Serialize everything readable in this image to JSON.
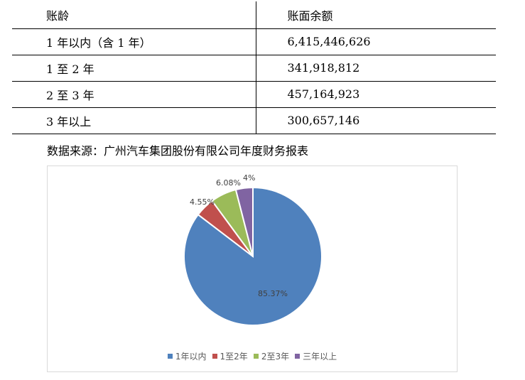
{
  "table": {
    "headers": [
      "账龄",
      "账面余额"
    ],
    "rows": [
      {
        "age": "1 年以内（含 1 年）",
        "balance": "6,415,446,626"
      },
      {
        "age": "1 至 2 年",
        "balance": "341,918,812"
      },
      {
        "age": "2 至 3 年",
        "balance": "457,164,923"
      },
      {
        "age": "3 年以上",
        "balance": "300,657,146"
      }
    ]
  },
  "source_text": "数据来源：广州汽车集团股份有限公司年度财务报表",
  "chart_data": {
    "type": "pie",
    "title": "",
    "categories": [
      "1年以内",
      "1至2年",
      "2至3年",
      "三年以上"
    ],
    "values": [
      85.37,
      4.55,
      6.08,
      4
    ],
    "data_labels": [
      "85.37%",
      "4.55%",
      "6.08%",
      "4%"
    ],
    "colors": [
      "#4f81bd",
      "#c0504d",
      "#9bbb59",
      "#8064a2"
    ],
    "legend_position": "bottom"
  }
}
